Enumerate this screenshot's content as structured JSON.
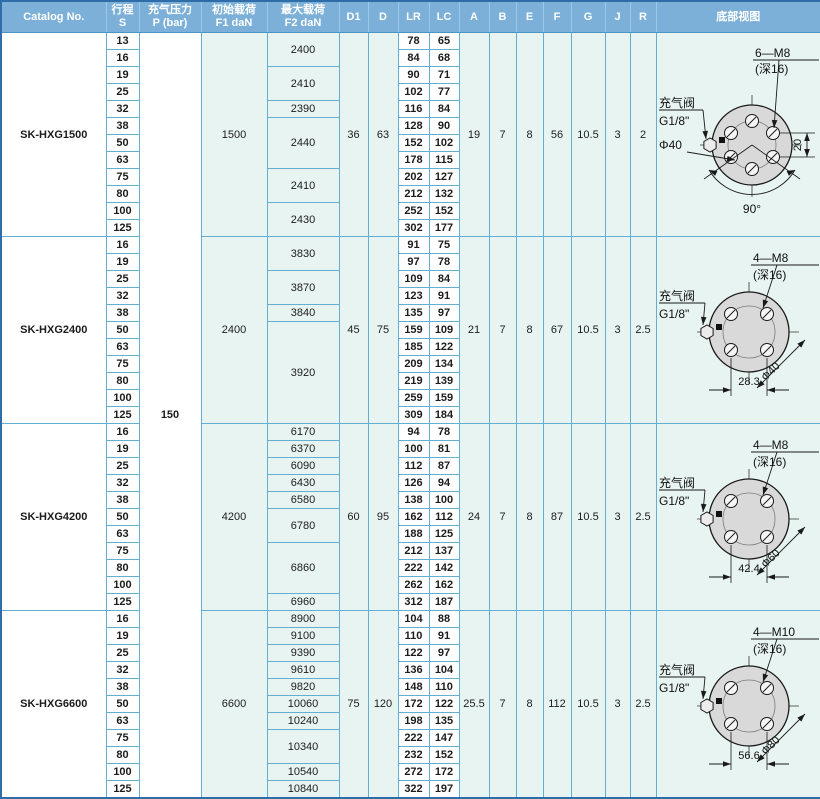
{
  "header": {
    "columns": [
      {
        "key": "catalog",
        "lines": [
          "Catalog No."
        ]
      },
      {
        "key": "stroke",
        "lines": [
          "行程",
          "S"
        ]
      },
      {
        "key": "pressure",
        "lines": [
          "充气压力",
          "P (bar)"
        ]
      },
      {
        "key": "f1",
        "lines": [
          "初始载荷",
          "F1 daN"
        ]
      },
      {
        "key": "f2",
        "lines": [
          "最大载荷",
          "F2 daN"
        ]
      },
      {
        "key": "d1",
        "lines": [
          "D1"
        ]
      },
      {
        "key": "d",
        "lines": [
          "D"
        ]
      },
      {
        "key": "lr",
        "lines": [
          "LR"
        ]
      },
      {
        "key": "lc",
        "lines": [
          "LC"
        ]
      },
      {
        "key": "a",
        "lines": [
          "A"
        ]
      },
      {
        "key": "b",
        "lines": [
          "B"
        ]
      },
      {
        "key": "e",
        "lines": [
          "E"
        ]
      },
      {
        "key": "f",
        "lines": [
          "F"
        ]
      },
      {
        "key": "g",
        "lines": [
          "G"
        ]
      },
      {
        "key": "j",
        "lines": [
          "J"
        ]
      },
      {
        "key": "r",
        "lines": [
          "R"
        ]
      },
      {
        "key": "bottom_view",
        "lines": [
          "底部视图"
        ]
      }
    ]
  },
  "pressure": {
    "value": "150"
  },
  "colors": {
    "header_bg": "#7cb0d8",
    "grid_line": "#63aed3",
    "body_bg": "#e8f4f1",
    "outer_border": "#2f6da8",
    "section_border": "#4c96c4",
    "diagram_fill": "#d9d9d9"
  },
  "sections": [
    {
      "catalog": "SK-HXG1500",
      "f1": "1500",
      "d1": "36",
      "d": "63",
      "a": "19",
      "b": "7",
      "e": "8",
      "f": "56",
      "g": "10.5",
      "j": "3",
      "r": "2",
      "rows": [
        {
          "s": "13",
          "lr": "78",
          "lc": "65"
        },
        {
          "s": "16",
          "lr": "84",
          "lc": "68"
        },
        {
          "s": "19",
          "lr": "90",
          "lc": "71"
        },
        {
          "s": "25",
          "lr": "102",
          "lc": "77"
        },
        {
          "s": "32",
          "lr": "116",
          "lc": "84"
        },
        {
          "s": "38",
          "lr": "128",
          "lc": "90"
        },
        {
          "s": "50",
          "lr": "152",
          "lc": "102"
        },
        {
          "s": "63",
          "lr": "178",
          "lc": "115"
        },
        {
          "s": "75",
          "lr": "202",
          "lc": "127"
        },
        {
          "s": "80",
          "lr": "212",
          "lc": "132"
        },
        {
          "s": "100",
          "lr": "252",
          "lc": "152"
        },
        {
          "s": "125",
          "lr": "302",
          "lc": "177"
        }
      ],
      "f2_groups": [
        {
          "value": "2400",
          "span": 2
        },
        {
          "value": "2410",
          "span": 2
        },
        {
          "value": "2390",
          "span": 1
        },
        {
          "value": "2440",
          "span": 3
        },
        {
          "value": "2410",
          "span": 2
        },
        {
          "value": "2430",
          "span": 2
        }
      ],
      "diagram": {
        "holes": 6,
        "valve_label": "充气阀",
        "thread": "G1/8\"",
        "bolt_label": "6—M8",
        "depth_label": "(深16)",
        "dia_label": "Φ40",
        "dim_label": "20",
        "angle_label": "90°"
      }
    },
    {
      "catalog": "SK-HXG2400",
      "f1": "2400",
      "d1": "45",
      "d": "75",
      "a": "21",
      "b": "7",
      "e": "8",
      "f": "67",
      "g": "10.5",
      "j": "3",
      "r": "2.5",
      "rows": [
        {
          "s": "16",
          "lr": "91",
          "lc": "75"
        },
        {
          "s": "19",
          "lr": "97",
          "lc": "78"
        },
        {
          "s": "25",
          "lr": "109",
          "lc": "84"
        },
        {
          "s": "32",
          "lr": "123",
          "lc": "91"
        },
        {
          "s": "38",
          "lr": "135",
          "lc": "97"
        },
        {
          "s": "50",
          "lr": "159",
          "lc": "109"
        },
        {
          "s": "63",
          "lr": "185",
          "lc": "122"
        },
        {
          "s": "75",
          "lr": "209",
          "lc": "134"
        },
        {
          "s": "80",
          "lr": "219",
          "lc": "139"
        },
        {
          "s": "100",
          "lr": "259",
          "lc": "159"
        },
        {
          "s": "125",
          "lr": "309",
          "lc": "184"
        }
      ],
      "f2_groups": [
        {
          "value": "3830",
          "span": 2
        },
        {
          "value": "3870",
          "span": 2
        },
        {
          "value": "3840",
          "span": 1
        },
        {
          "value": "3920",
          "span": 6
        }
      ],
      "diagram": {
        "holes": 4,
        "valve_label": "充气阀",
        "thread": "G1/8\"",
        "bolt_label": "4—M8",
        "depth_label": "(深16)",
        "dia_label": "Φ40",
        "dim_label": "28.3"
      }
    },
    {
      "catalog": "SK-HXG4200",
      "f1": "4200",
      "d1": "60",
      "d": "95",
      "a": "24",
      "b": "7",
      "e": "8",
      "f": "87",
      "g": "10.5",
      "j": "3",
      "r": "2.5",
      "rows": [
        {
          "s": "16",
          "lr": "94",
          "lc": "78"
        },
        {
          "s": "19",
          "lr": "100",
          "lc": "81"
        },
        {
          "s": "25",
          "lr": "112",
          "lc": "87"
        },
        {
          "s": "32",
          "lr": "126",
          "lc": "94"
        },
        {
          "s": "38",
          "lr": "138",
          "lc": "100"
        },
        {
          "s": "50",
          "lr": "162",
          "lc": "112"
        },
        {
          "s": "63",
          "lr": "188",
          "lc": "125"
        },
        {
          "s": "75",
          "lr": "212",
          "lc": "137"
        },
        {
          "s": "80",
          "lr": "222",
          "lc": "142"
        },
        {
          "s": "100",
          "lr": "262",
          "lc": "162"
        },
        {
          "s": "125",
          "lr": "312",
          "lc": "187"
        }
      ],
      "f2_groups": [
        {
          "value": "6170",
          "span": 1
        },
        {
          "value": "6370",
          "span": 1
        },
        {
          "value": "6090",
          "span": 1
        },
        {
          "value": "6430",
          "span": 1
        },
        {
          "value": "6580",
          "span": 1
        },
        {
          "value": "6780",
          "span": 2
        },
        {
          "value": "6860",
          "span": 3
        },
        {
          "value": "6960",
          "span": 1
        }
      ],
      "diagram": {
        "holes": 4,
        "valve_label": "充气阀",
        "thread": "G1/8\"",
        "bolt_label": "4—M8",
        "depth_label": "(深16)",
        "dia_label": "Φ60",
        "dim_label": "42.4"
      }
    },
    {
      "catalog": "SK-HXG6600",
      "f1": "6600",
      "d1": "75",
      "d": "120",
      "a": "25.5",
      "b": "7",
      "e": "8",
      "f": "112",
      "g": "10.5",
      "j": "3",
      "r": "2.5",
      "rows": [
        {
          "s": "16",
          "lr": "104",
          "lc": "88"
        },
        {
          "s": "19",
          "lr": "110",
          "lc": "91"
        },
        {
          "s": "25",
          "lr": "122",
          "lc": "97"
        },
        {
          "s": "32",
          "lr": "136",
          "lc": "104"
        },
        {
          "s": "38",
          "lr": "148",
          "lc": "110"
        },
        {
          "s": "50",
          "lr": "172",
          "lc": "122"
        },
        {
          "s": "63",
          "lr": "198",
          "lc": "135"
        },
        {
          "s": "75",
          "lr": "222",
          "lc": "147"
        },
        {
          "s": "80",
          "lr": "232",
          "lc": "152"
        },
        {
          "s": "100",
          "lr": "272",
          "lc": "172"
        },
        {
          "s": "125",
          "lr": "322",
          "lc": "197"
        }
      ],
      "f2_groups": [
        {
          "value": "8900",
          "span": 1
        },
        {
          "value": "9100",
          "span": 1
        },
        {
          "value": "9390",
          "span": 1
        },
        {
          "value": "9610",
          "span": 1
        },
        {
          "value": "9820",
          "span": 1
        },
        {
          "value": "10060",
          "span": 1
        },
        {
          "value": "10240",
          "span": 1
        },
        {
          "value": "10340",
          "span": 2
        },
        {
          "value": "10540",
          "span": 1
        },
        {
          "value": "10840",
          "span": 1
        }
      ],
      "diagram": {
        "holes": 4,
        "valve_label": "充气阀",
        "thread": "G1/8\"",
        "bolt_label": "4—M10",
        "depth_label": "(深16)",
        "dia_label": "Φ80",
        "dim_label": "56.6"
      }
    }
  ]
}
